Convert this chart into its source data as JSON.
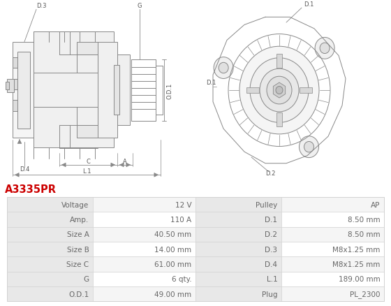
{
  "title": "A3335PR",
  "title_color": "#cc0000",
  "bg_color": "#ffffff",
  "table_rows": [
    [
      "Voltage",
      "12 V",
      "Pulley",
      "AP"
    ],
    [
      "Amp.",
      "110 A",
      "D.1",
      "8.50 mm"
    ],
    [
      "Size A",
      "40.50 mm",
      "D.2",
      "8.50 mm"
    ],
    [
      "Size B",
      "14.00 mm",
      "D.3",
      "M8x1.25 mm"
    ],
    [
      "Size C",
      "61.00 mm",
      "D.4",
      "M8x1.25 mm"
    ],
    [
      "G",
      "6 qty.",
      "L.1",
      "189.00 mm"
    ],
    [
      "O.D.1",
      "49.00 mm",
      "Plug",
      "PL_2300"
    ]
  ],
  "label_bg": "#e8e8e8",
  "value_bg_odd": "#f5f5f5",
  "value_bg_even": "#ffffff",
  "border_color": "#d0d0d0",
  "text_color": "#666666",
  "font_size": 7.5,
  "fig_width": 5.6,
  "fig_height": 4.39,
  "dpi": 100,
  "line_color": "#888888",
  "line_width": 0.7
}
